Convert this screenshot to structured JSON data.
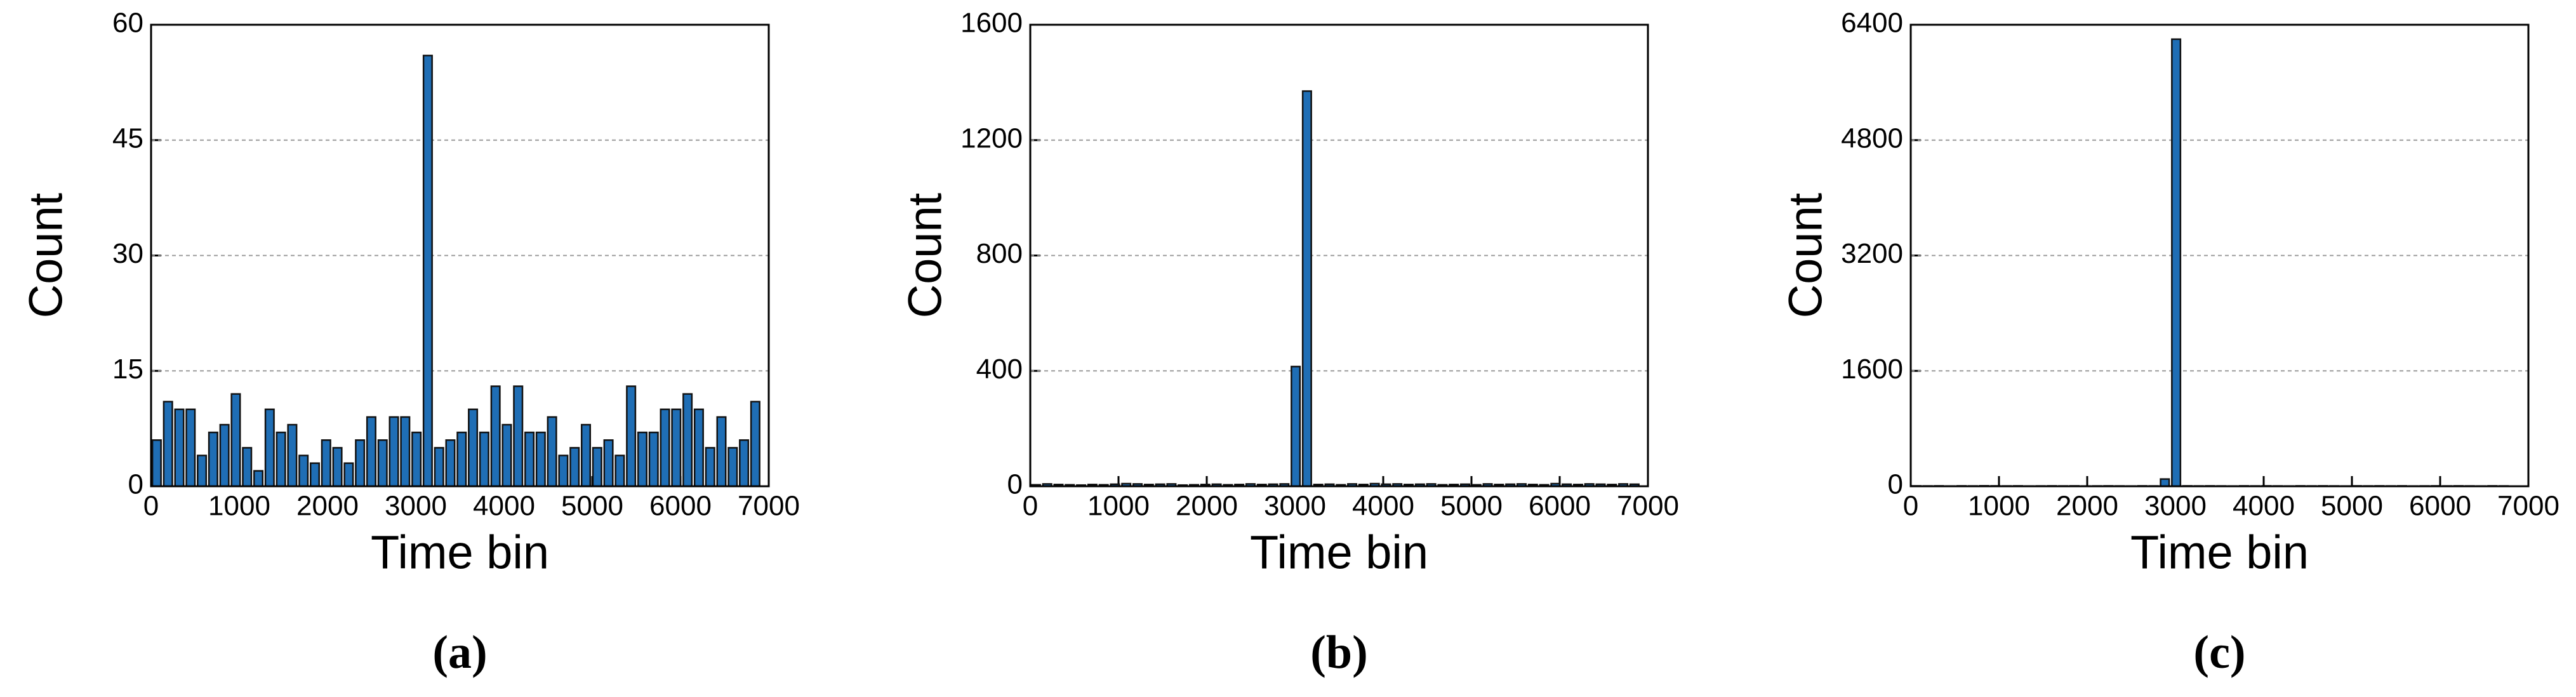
{
  "chart_data": [
    {
      "type": "histogram",
      "xlabel": "Time bin",
      "ylabel": "Count",
      "caption": "(a)",
      "color": "#1f6eb5",
      "grid": true,
      "bins": [
        0,
        128,
        256,
        384,
        512,
        640,
        768,
        896,
        1024,
        1152,
        1280,
        1408,
        1536,
        1664,
        1792,
        1920,
        2048,
        2176,
        2304,
        2432,
        2560,
        2688,
        2816,
        2944,
        3072,
        3200,
        3328,
        3456,
        3584,
        3712,
        3840,
        3968,
        4096,
        4224,
        4352,
        4480,
        4608,
        4736,
        4864,
        4992,
        5120,
        5248,
        5376,
        5504,
        5632,
        5760,
        5888,
        6016,
        6144,
        6272,
        6400,
        6528,
        6656,
        6784,
        6912
      ],
      "values": [
        6,
        11,
        10,
        10,
        4,
        7,
        8,
        12,
        5,
        2,
        10,
        7,
        8,
        4,
        3,
        6,
        5,
        3,
        6,
        9,
        6,
        9,
        9,
        7,
        56,
        5,
        6,
        7,
        10,
        7,
        13,
        8,
        13,
        7,
        7,
        9,
        4,
        5,
        8,
        5,
        6,
        4,
        13,
        7,
        7,
        10,
        10,
        12,
        10,
        5,
        9,
        5,
        6,
        11
      ],
      "xlim": [
        0,
        7000
      ],
      "xticks": [
        0,
        1000,
        2000,
        3000,
        4000,
        5000,
        6000,
        7000
      ],
      "ylim": [
        0,
        60
      ],
      "yticks": [
        0,
        15,
        30,
        45,
        60
      ]
    },
    {
      "type": "histogram",
      "xlabel": "Time bin",
      "ylabel": "Count",
      "caption": "(b)",
      "color": "#1f6eb5",
      "grid": true,
      "bins": [
        0,
        128,
        256,
        384,
        512,
        640,
        768,
        896,
        1024,
        1152,
        1280,
        1408,
        1536,
        1664,
        1792,
        1920,
        2048,
        2176,
        2304,
        2432,
        2560,
        2688,
        2816,
        2944,
        3072,
        3200,
        3328,
        3456,
        3584,
        3712,
        3840,
        3968,
        4096,
        4224,
        4352,
        4480,
        4608,
        4736,
        4864,
        4992,
        5120,
        5248,
        5376,
        5504,
        5632,
        5760,
        5888,
        6016,
        6144,
        6272,
        6400,
        6528,
        6656,
        6784,
        6912
      ],
      "values": [
        5,
        8,
        6,
        5,
        4,
        6,
        5,
        7,
        9,
        8,
        6,
        7,
        8,
        4,
        5,
        6,
        7,
        5,
        6,
        8,
        6,
        7,
        8,
        415,
        1370,
        6,
        7,
        5,
        8,
        6,
        9,
        7,
        8,
        6,
        7,
        8,
        5,
        6,
        7,
        5,
        8,
        6,
        7,
        8,
        6,
        5,
        9,
        7,
        6,
        8,
        7,
        6,
        8,
        7
      ],
      "xlim": [
        0,
        7000
      ],
      "xticks": [
        0,
        1000,
        2000,
        3000,
        4000,
        5000,
        6000,
        7000
      ],
      "ylim": [
        0,
        1600
      ],
      "yticks": [
        0,
        400,
        800,
        1200,
        1600
      ]
    },
    {
      "type": "histogram",
      "xlabel": "Time bin",
      "ylabel": "Count",
      "caption": "(c)",
      "color": "#1f6eb5",
      "grid": true,
      "bins": [
        0,
        128,
        256,
        384,
        512,
        640,
        768,
        896,
        1024,
        1152,
        1280,
        1408,
        1536,
        1664,
        1792,
        1920,
        2048,
        2176,
        2304,
        2432,
        2560,
        2688,
        2816,
        2944,
        3072,
        3200,
        3328,
        3456,
        3584,
        3712,
        3840,
        3968,
        4096,
        4224,
        4352,
        4480,
        4608,
        4736,
        4864,
        4992,
        5120,
        5248,
        5376,
        5504,
        5632,
        5760,
        5888,
        6016,
        6144,
        6272,
        6400,
        6528,
        6656,
        6784,
        6912
      ],
      "values": [
        5,
        4,
        5,
        3,
        5,
        4,
        6,
        5,
        4,
        5,
        3,
        4,
        5,
        4,
        5,
        3,
        4,
        5,
        4,
        3,
        5,
        4,
        100,
        6200,
        5,
        4,
        5,
        4,
        3,
        5,
        4,
        5,
        4,
        3,
        5,
        4,
        5,
        4,
        3,
        5,
        4,
        5,
        4,
        5,
        3,
        4,
        5,
        4,
        5,
        4,
        3,
        5,
        4,
        0
      ],
      "xlim": [
        0,
        7000
      ],
      "xticks": [
        0,
        1000,
        2000,
        3000,
        4000,
        5000,
        6000,
        7000
      ],
      "ylim": [
        0,
        6400
      ],
      "yticks": [
        0,
        1600,
        3200,
        4800,
        6400
      ]
    }
  ]
}
